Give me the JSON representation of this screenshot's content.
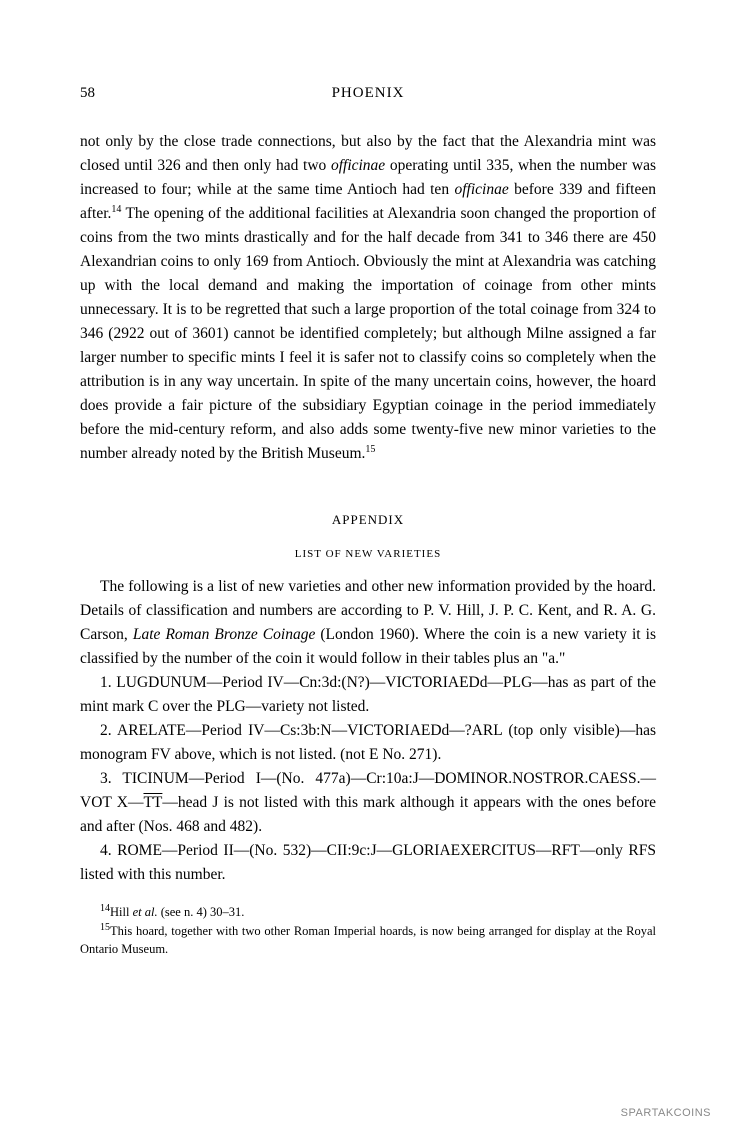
{
  "page_number": "58",
  "journal_title": "PHOENIX",
  "body_part1": "not only by the close trade connections, but also by the fact that the Alexandria mint was closed until 326 and then only had two ",
  "body_italic1": "officinae",
  "body_part2": " operating until 335, when the number was increased to four; while at the same time Antioch had ten ",
  "body_italic2": "officinae",
  "body_part3": " before 339 and fifteen after.",
  "body_sup1": "14",
  "body_part4": " The opening of the additional facilities at Alexandria soon changed the proportion of coins from the two mints drastically and for the half decade from 341 to 346 there are 450 Alexandrian coins to only 169 from Antioch. Obviously the mint at Alexandria was catching up with the local demand and making the importation of coinage from other mints unnecessary. It is to be regretted that such a large proportion of the total coinage from 324 to 346 (2922 out of 3601) cannot be identified completely; but although Milne assigned a far larger number to specific mints I feel it is safer not to classify coins so completely when the attribution is in any way uncertain. In spite of the many uncertain coins, however, the hoard does provide a fair picture of the subsidiary Egyptian coinage in the period immediately before the mid-century reform, and also adds some twenty-five new minor varieties to the number already noted by the British Museum.",
  "body_sup2": "15",
  "appendix_label": "APPENDIX",
  "subtitle": "LIST OF NEW VARIETIES",
  "intro_part1": "The following is a list of new varieties and other new information provided by the hoard. Details of classification and numbers are according to P. V. Hill, J. P. C. Kent, and R. A. G. Carson, ",
  "intro_italic1": "Late Roman Bronze Coinage",
  "intro_part2": " (London 1960). Where the coin is a new variety it is classified by the number of the coin it would follow in their tables plus an \"a.\"",
  "entry1": "1. LUGDUNUM—Period IV—Cn:3d:(N?)—VICTORIAEDd—PLG—has as part of the mint mark C over the PLG—variety not listed.",
  "entry2": "2. ARELATE—Period IV—Cs:3b:N—VICTORIAEDd—?ARL (top only visible)—has monogram FV above, which is not listed. (not E No. 271).",
  "entry3_part1": "3. TICINUM—Period I—(No. 477a)—Cr:10a:J—DOMINOR.NOSTROR.CAESS.—VOT X—",
  "entry3_overline": "TT",
  "entry3_part2": "—head J is not listed with this mark although it appears with the ones before and after (Nos. 468 and 482).",
  "entry4": "4. ROME—Period II—(No. 532)—CII:9c:J—GLORIAEXERCITUS—RFT—only RFS listed with this number.",
  "footnote14_sup": "14",
  "footnote14_part1": "Hill ",
  "footnote14_italic": "et al.",
  "footnote14_part2": " (see n. 4) 30–31.",
  "footnote15_sup": "15",
  "footnote15_text": "This hoard, together with two other Roman Imperial hoards, is now being arranged for display at the Royal Ontario Museum.",
  "watermark": "SPARTAKCOINS",
  "colors": {
    "background": "#ffffff",
    "text": "#000000",
    "watermark": "#888888"
  },
  "typography": {
    "body_fontsize": 15.5,
    "page_num_fontsize": 15,
    "appendix_fontsize": 13,
    "subtitle_fontsize": 11,
    "footnote_fontsize": 12.5,
    "watermark_fontsize": 11,
    "line_height": 1.55,
    "font_family": "Georgia, Times New Roman, serif"
  }
}
